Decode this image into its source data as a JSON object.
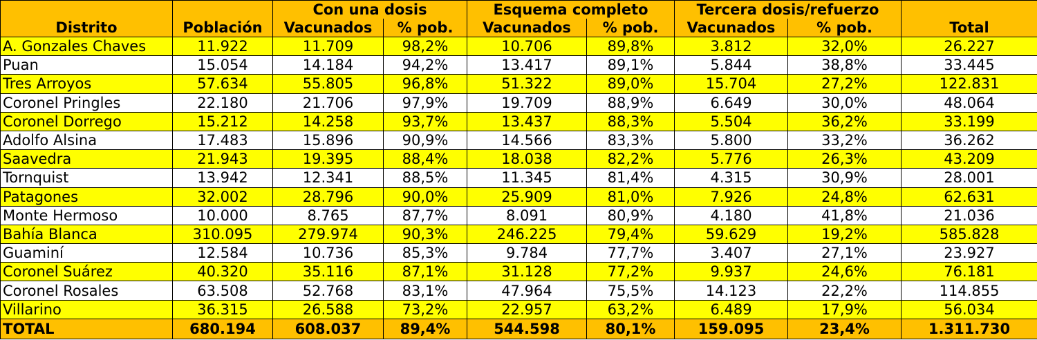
{
  "header": {
    "distrito": "Distrito",
    "poblacion": "Población",
    "groups": [
      "Con una dosis",
      "Esquema completo",
      "Tercera dosis/refuerzo"
    ],
    "vacunados": "Vacunados",
    "pct": "% pob.",
    "total": "Total"
  },
  "rows": [
    {
      "distrito": "A. Gonzales Chaves",
      "poblacion": "11.922",
      "d1_vac": "11.709",
      "d1_pct": "98,2%",
      "d2_vac": "10.706",
      "d2_pct": "89,8%",
      "d3_vac": "3.812",
      "d3_pct": "32,0%",
      "total": "26.227"
    },
    {
      "distrito": "Puan",
      "poblacion": "15.054",
      "d1_vac": "14.184",
      "d1_pct": "94,2%",
      "d2_vac": "13.417",
      "d2_pct": "89,1%",
      "d3_vac": "5.844",
      "d3_pct": "38,8%",
      "total": "33.445"
    },
    {
      "distrito": "Tres Arroyos",
      "poblacion": "57.634",
      "d1_vac": "55.805",
      "d1_pct": "96,8%",
      "d2_vac": "51.322",
      "d2_pct": "89,0%",
      "d3_vac": "15.704",
      "d3_pct": "27,2%",
      "total": "122.831"
    },
    {
      "distrito": "Coronel Pringles",
      "poblacion": "22.180",
      "d1_vac": "21.706",
      "d1_pct": "97,9%",
      "d2_vac": "19.709",
      "d2_pct": "88,9%",
      "d3_vac": "6.649",
      "d3_pct": "30,0%",
      "total": "48.064"
    },
    {
      "distrito": "Coronel Dorrego",
      "poblacion": "15.212",
      "d1_vac": "14.258",
      "d1_pct": "93,7%",
      "d2_vac": "13.437",
      "d2_pct": "88,3%",
      "d3_vac": "5.504",
      "d3_pct": "36,2%",
      "total": "33.199"
    },
    {
      "distrito": "Adolfo Alsina",
      "poblacion": "17.483",
      "d1_vac": "15.896",
      "d1_pct": "90,9%",
      "d2_vac": "14.566",
      "d2_pct": "83,3%",
      "d3_vac": "5.800",
      "d3_pct": "33,2%",
      "total": "36.262"
    },
    {
      "distrito": "Saavedra",
      "poblacion": "21.943",
      "d1_vac": "19.395",
      "d1_pct": "88,4%",
      "d2_vac": "18.038",
      "d2_pct": "82,2%",
      "d3_vac": "5.776",
      "d3_pct": "26,3%",
      "total": "43.209"
    },
    {
      "distrito": "Tornquist",
      "poblacion": "13.942",
      "d1_vac": "12.341",
      "d1_pct": "88,5%",
      "d2_vac": "11.345",
      "d2_pct": "81,4%",
      "d3_vac": "4.315",
      "d3_pct": "30,9%",
      "total": "28.001"
    },
    {
      "distrito": "Patagones",
      "poblacion": "32.002",
      "d1_vac": "28.796",
      "d1_pct": "90,0%",
      "d2_vac": "25.909",
      "d2_pct": "81,0%",
      "d3_vac": "7.926",
      "d3_pct": "24,8%",
      "total": "62.631"
    },
    {
      "distrito": "Monte Hermoso",
      "poblacion": "10.000",
      "d1_vac": "8.765",
      "d1_pct": "87,7%",
      "d2_vac": "8.091",
      "d2_pct": "80,9%",
      "d3_vac": "4.180",
      "d3_pct": "41,8%",
      "total": "21.036"
    },
    {
      "distrito": "Bahía Blanca",
      "poblacion": "310.095",
      "d1_vac": "279.974",
      "d1_pct": "90,3%",
      "d2_vac": "246.225",
      "d2_pct": "79,4%",
      "d3_vac": "59.629",
      "d3_pct": "19,2%",
      "total": "585.828"
    },
    {
      "distrito": "Guaminí",
      "poblacion": "12.584",
      "d1_vac": "10.736",
      "d1_pct": "85,3%",
      "d2_vac": "9.784",
      "d2_pct": "77,7%",
      "d3_vac": "3.407",
      "d3_pct": "27,1%",
      "total": "23.927"
    },
    {
      "distrito": "Coronel Suárez",
      "poblacion": "40.320",
      "d1_vac": "35.116",
      "d1_pct": "87,1%",
      "d2_vac": "31.128",
      "d2_pct": "77,2%",
      "d3_vac": "9.937",
      "d3_pct": "24,6%",
      "total": "76.181"
    },
    {
      "distrito": "Coronel Rosales",
      "poblacion": "63.508",
      "d1_vac": "52.768",
      "d1_pct": "83,1%",
      "d2_vac": "47.964",
      "d2_pct": "75,5%",
      "d3_vac": "14.123",
      "d3_pct": "22,2%",
      "total": "114.855"
    },
    {
      "distrito": "Villarino",
      "poblacion": "36.315",
      "d1_vac": "26.588",
      "d1_pct": "73,2%",
      "d2_vac": "22.957",
      "d2_pct": "63,2%",
      "d3_vac": "6.489",
      "d3_pct": "17,9%",
      "total": "56.034"
    }
  ],
  "totals": {
    "distrito": "TOTAL",
    "poblacion": "680.194",
    "d1_vac": "608.037",
    "d1_pct": "89,4%",
    "d2_vac": "544.598",
    "d2_pct": "80,1%",
    "d3_vac": "159.095",
    "d3_pct": "23,4%",
    "total": "1.311.730"
  },
  "colors": {
    "header": "#ffc000",
    "row_highlight": "#ffff00",
    "row_plain": "#ffffff",
    "border": "#000000"
  }
}
